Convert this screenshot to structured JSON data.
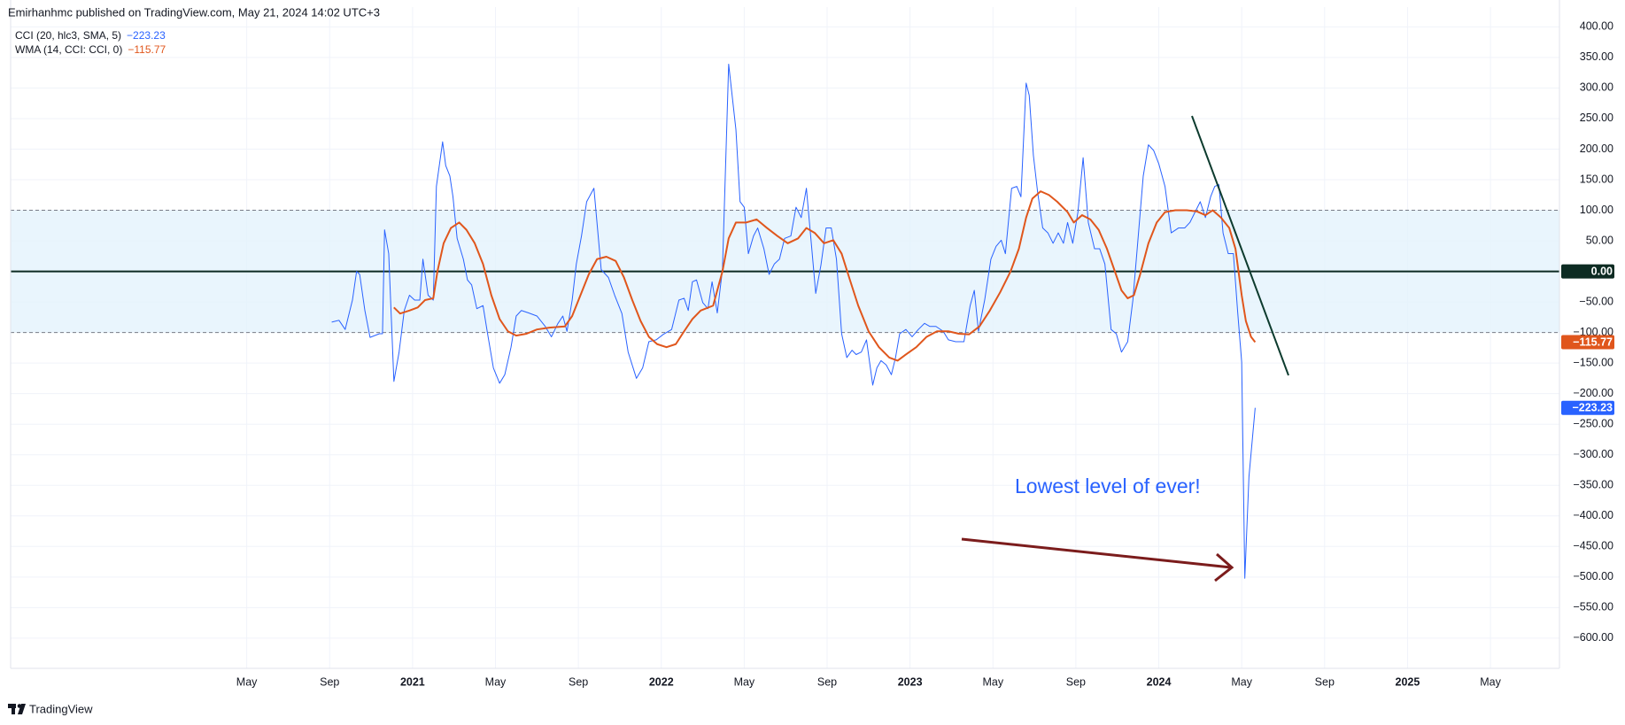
{
  "header": "Emirhanhmc published on TradingView.com, May 21, 2024 14:02 UTC+3",
  "footer": "TradingView",
  "chart_data": {
    "type": "line",
    "annotation": "Lowest level of ever!",
    "xlim": [
      -7.39,
      67.33
    ],
    "xticks": [
      {
        "value": 4,
        "label": "May"
      },
      {
        "value": 8,
        "label": "Sep"
      },
      {
        "value": 12,
        "label": "2021"
      },
      {
        "value": 16,
        "label": "May"
      },
      {
        "value": 20,
        "label": "Sep"
      },
      {
        "value": 24,
        "label": "2022"
      },
      {
        "value": 28,
        "label": "May"
      },
      {
        "value": 32,
        "label": "Sep"
      },
      {
        "value": 36,
        "label": "2023"
      },
      {
        "value": 40,
        "label": "May"
      },
      {
        "value": 44,
        "label": "Sep"
      },
      {
        "value": 48,
        "label": "2024"
      },
      {
        "value": 52,
        "label": "May"
      },
      {
        "value": 56,
        "label": "Sep"
      },
      {
        "value": 60,
        "label": "2025"
      },
      {
        "value": 64,
        "label": "May"
      }
    ],
    "ylim": [
      -649.4,
      432.4
    ],
    "yticks": [
      {
        "value": 400,
        "label": "400.00"
      },
      {
        "value": 350,
        "label": "350.00"
      },
      {
        "value": 300,
        "label": "300.00"
      },
      {
        "value": 250,
        "label": "250.00"
      },
      {
        "value": 200,
        "label": "200.00"
      },
      {
        "value": 150,
        "label": "150.00"
      },
      {
        "value": 100,
        "label": "100.00"
      },
      {
        "value": 50,
        "label": "50.00"
      },
      {
        "value": 0,
        "label": "0.00"
      },
      {
        "value": -50,
        "label": "−50.00"
      },
      {
        "value": -100,
        "label": "−100.00"
      },
      {
        "value": -150,
        "label": "−150.00"
      },
      {
        "value": -200,
        "label": "−200.00"
      },
      {
        "value": -250,
        "label": "−250.00"
      },
      {
        "value": -300,
        "label": "−300.00"
      },
      {
        "value": -350,
        "label": "−350.00"
      },
      {
        "value": -400,
        "label": "−400.00"
      },
      {
        "value": -450,
        "label": "−450.00"
      },
      {
        "value": -500,
        "label": "−500.00"
      },
      {
        "value": -550,
        "label": "−550.00"
      },
      {
        "value": -600,
        "label": "−600.00"
      }
    ],
    "grid": true,
    "bands": {
      "upper": 100,
      "middle": 0,
      "lower": -100,
      "fill": "#e3f2fd"
    },
    "series": [
      {
        "name": "CCI (20, hlc3, SMA, 5)",
        "color": "#2962ff",
        "last_label": "−223.23",
        "x": [
          8.1,
          8.45,
          8.75,
          9.1,
          9.3,
          9.45,
          9.7,
          9.95,
          10.4,
          10.55,
          10.65,
          10.85,
          11.1,
          11.35,
          11.6,
          11.85,
          12.1,
          12.35,
          12.5,
          12.75,
          13,
          13.15,
          13.45,
          13.6,
          13.8,
          13.95,
          14.15,
          14.45,
          14.65,
          14.85,
          15.1,
          15.4,
          15.6,
          15.9,
          16.2,
          16.45,
          16.75,
          17,
          17.25,
          17.6,
          18,
          18.4,
          18.7,
          19,
          19.25,
          19.45,
          19.7,
          19.9,
          20.15,
          20.4,
          20.75,
          21.1,
          21.45,
          21.75,
          22.1,
          22.4,
          22.8,
          23.1,
          23.4,
          23.75,
          24.1,
          24.5,
          24.85,
          25.1,
          25.3,
          25.5,
          25.7,
          26,
          26.25,
          26.45,
          26.7,
          26.95,
          27.25,
          27.6,
          27.8,
          28,
          28.2,
          28.45,
          28.65,
          28.95,
          29.2,
          29.45,
          29.7,
          29.95,
          30.25,
          30.5,
          30.75,
          31,
          31.25,
          31.45,
          31.7,
          31.95,
          32.2,
          32.45,
          32.7,
          32.95,
          33.2,
          33.4,
          33.65,
          33.9,
          34.2,
          34.4,
          34.6,
          34.85,
          35.1,
          35.3,
          35.5,
          35.8,
          36.1,
          36.4,
          36.7,
          36.95,
          37.25,
          37.6,
          37.85,
          38.2,
          38.6,
          38.9,
          39.1,
          39.3,
          39.6,
          39.9,
          40.15,
          40.4,
          40.6,
          40.9,
          41.15,
          41.35,
          41.6,
          41.75,
          41.95,
          42.15,
          42.4,
          42.65,
          42.9,
          43.15,
          43.4,
          43.6,
          43.85,
          44.1,
          44.35,
          44.6,
          44.9,
          45.15,
          45.4,
          45.7,
          45.95,
          46.2,
          46.5,
          46.75,
          47,
          47.25,
          47.5,
          47.75,
          48,
          48.3,
          48.6,
          48.95,
          49.25,
          49.5,
          49.75,
          50,
          50.25,
          50.5,
          50.7,
          50.9,
          51.1,
          51.35,
          51.6,
          51.8,
          52,
          52.15,
          52.35,
          52.65
        ],
        "values": [
          -83,
          -80,
          -95,
          -47,
          0,
          -5,
          -64,
          -108,
          -102,
          -102,
          68,
          29,
          -180,
          -132,
          -64,
          -39,
          -47,
          -47,
          20,
          -39,
          -47,
          139,
          212,
          173,
          156,
          122,
          54,
          20,
          -14,
          -22,
          -61,
          -56,
          -98,
          -158,
          -183,
          -169,
          -124,
          -73,
          -64,
          -68,
          -73,
          -90,
          -107,
          -86,
          -73,
          -98,
          -47,
          12,
          58,
          114,
          136,
          3,
          -10,
          -39,
          -69,
          -132,
          -175,
          -158,
          -115,
          -112,
          -103,
          -95,
          -47,
          -44,
          -64,
          -17,
          -14,
          -51,
          -61,
          -17,
          -68,
          3,
          339,
          232,
          114,
          105,
          29,
          58,
          71,
          37,
          -5,
          12,
          20,
          54,
          58,
          105,
          88,
          136,
          41,
          -36,
          10,
          71,
          71,
          20,
          -102,
          -141,
          -129,
          -136,
          -132,
          -112,
          -186,
          -158,
          -146,
          -153,
          -169,
          -141,
          -102,
          -95,
          -107,
          -95,
          -85,
          -90,
          -90,
          -98,
          -112,
          -115,
          -115,
          -56,
          -31,
          -98,
          -47,
          20,
          41,
          51,
          29,
          136,
          139,
          122,
          308,
          288,
          190,
          131,
          71,
          63,
          46,
          63,
          46,
          80,
          46,
          97,
          186,
          80,
          37,
          37,
          12,
          -95,
          -102,
          -132,
          -115,
          -47,
          54,
          156,
          207,
          198,
          176,
          139,
          63,
          71,
          71,
          80,
          97,
          114,
          88,
          122,
          139,
          142,
          63,
          29,
          29,
          -64,
          -149,
          -502,
          -336,
          -223.23
        ]
      },
      {
        "name": "WMA (14, CCI: CCI, 0)",
        "color": "#e0561c",
        "last_label": "−115.77",
        "x": [
          11.1,
          11.4,
          11.85,
          12.25,
          12.6,
          13,
          13.2,
          13.5,
          13.85,
          14.25,
          14.6,
          15,
          15.4,
          15.8,
          16.2,
          16.6,
          17,
          17.5,
          18,
          18.6,
          19.35,
          19.7,
          20.1,
          20.5,
          20.9,
          21.35,
          21.8,
          22.2,
          22.6,
          23,
          23.4,
          23.8,
          24.25,
          24.7,
          25.1,
          25.5,
          25.9,
          26.5,
          26.95,
          27.25,
          27.6,
          28.1,
          28.6,
          29.1,
          29.6,
          30.1,
          30.6,
          31,
          31.4,
          31.85,
          32.3,
          32.7,
          33.1,
          33.5,
          34,
          34.5,
          35,
          35.4,
          35.8,
          36.3,
          36.8,
          37.3,
          37.85,
          38.35,
          38.85,
          39.35,
          39.85,
          40.35,
          40.85,
          41.25,
          41.6,
          41.9,
          42.3,
          42.7,
          43.1,
          43.6,
          43.9,
          44.3,
          44.7,
          45.1,
          45.5,
          45.85,
          46.2,
          46.5,
          46.8,
          47.1,
          47.5,
          47.9,
          48.3,
          48.8,
          49.35,
          49.85,
          50.25,
          50.6,
          51,
          51.4,
          51.7,
          52,
          52.2,
          52.45,
          52.65
        ],
        "values": [
          -59,
          -69,
          -64,
          -59,
          -47,
          -44,
          0,
          46,
          71,
          80,
          68,
          46,
          12,
          -39,
          -78,
          -98,
          -105,
          -102,
          -95,
          -92,
          -90,
          -73,
          -39,
          -5,
          20,
          24,
          17,
          -10,
          -47,
          -81,
          -107,
          -119,
          -124,
          -119,
          -98,
          -78,
          -64,
          -56,
          0,
          54,
          80,
          80,
          85,
          71,
          58,
          46,
          54,
          71,
          63,
          46,
          51,
          29,
          -14,
          -56,
          -98,
          -124,
          -141,
          -146,
          -136,
          -124,
          -107,
          -98,
          -98,
          -102,
          -103,
          -90,
          -64,
          -34,
          0,
          37,
          88,
          119,
          131,
          125,
          114,
          97,
          80,
          92,
          85,
          68,
          37,
          3,
          -31,
          -44,
          -39,
          -5,
          46,
          80,
          97,
          100,
          100,
          98,
          92,
          100,
          88,
          71,
          37,
          -39,
          -81,
          -107,
          -115.77
        ]
      }
    ]
  }
}
